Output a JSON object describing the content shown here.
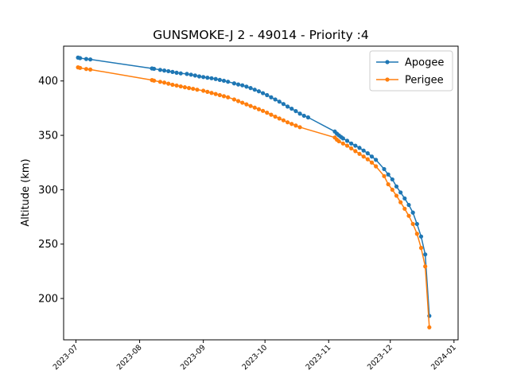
{
  "chart_data": {
    "type": "line",
    "title": "GUNSMOKE-J 2 - 49014 - Priority :4",
    "xlabel": "",
    "ylabel": "Altitude (km)",
    "xlim": [
      "2023-06-25",
      "2024-01-03"
    ],
    "ylim": [
      162,
      432
    ],
    "xticks": [
      "2023-07",
      "2023-08",
      "2023-09",
      "2023-10",
      "2023-11",
      "2023-12",
      "2024-01"
    ],
    "yticks": [
      200,
      250,
      300,
      350,
      400
    ],
    "grid": false,
    "legend_position": "upper right",
    "series": [
      {
        "name": "Apogee",
        "color": "#1f77b4",
        "marker": "dot",
        "points": [
          [
            "2023-07-02",
            421.5
          ],
          [
            "2023-07-03",
            421
          ],
          [
            "2023-07-06",
            420.2
          ],
          [
            "2023-07-08",
            419.8
          ],
          [
            "2023-08-07",
            411.5
          ],
          [
            "2023-08-08",
            411.2
          ],
          [
            "2023-08-11",
            410.2
          ],
          [
            "2023-08-13",
            409.6
          ],
          [
            "2023-08-15",
            409
          ],
          [
            "2023-08-17",
            408.3
          ],
          [
            "2023-08-19",
            407.6
          ],
          [
            "2023-08-21",
            407
          ],
          [
            "2023-08-24",
            406.5
          ],
          [
            "2023-08-26",
            405.8
          ],
          [
            "2023-08-28",
            405
          ],
          [
            "2023-08-30",
            404.2
          ],
          [
            "2023-09-01",
            403.6
          ],
          [
            "2023-09-03",
            403
          ],
          [
            "2023-09-05",
            402.5
          ],
          [
            "2023-09-07",
            401.8
          ],
          [
            "2023-09-09",
            401
          ],
          [
            "2023-09-11",
            400.2
          ],
          [
            "2023-09-13",
            399.3
          ],
          [
            "2023-09-16",
            397.8
          ],
          [
            "2023-09-18",
            396.8
          ],
          [
            "2023-09-20",
            396
          ],
          [
            "2023-09-22",
            394.8
          ],
          [
            "2023-09-24",
            393.5
          ],
          [
            "2023-09-26",
            392
          ],
          [
            "2023-09-28",
            390.5
          ],
          [
            "2023-09-30",
            388.8
          ],
          [
            "2023-10-02",
            387
          ],
          [
            "2023-10-04",
            385
          ],
          [
            "2023-10-06",
            383
          ],
          [
            "2023-10-08",
            381
          ],
          [
            "2023-10-10",
            378.8
          ],
          [
            "2023-10-12",
            376.5
          ],
          [
            "2023-10-14",
            374.5
          ],
          [
            "2023-10-16",
            372.3
          ],
          [
            "2023-10-18",
            370
          ],
          [
            "2023-10-20",
            368
          ],
          [
            "2023-10-22",
            366.5
          ],
          [
            "2023-11-04",
            353.5
          ],
          [
            "2023-11-05",
            351.5
          ],
          [
            "2023-11-06",
            350
          ],
          [
            "2023-11-07",
            348.5
          ],
          [
            "2023-11-08",
            347.2
          ],
          [
            "2023-11-10",
            345
          ],
          [
            "2023-11-12",
            342.5
          ],
          [
            "2023-11-14",
            340.5
          ],
          [
            "2023-11-16",
            338.5
          ],
          [
            "2023-11-18",
            336
          ],
          [
            "2023-11-20",
            333.5
          ],
          [
            "2023-11-22",
            330.5
          ],
          [
            "2023-11-24",
            327.5
          ],
          [
            "2023-11-28",
            319
          ],
          [
            "2023-11-30",
            314
          ],
          [
            "2023-12-02",
            309.5
          ],
          [
            "2023-12-04",
            303
          ],
          [
            "2023-12-06",
            297.5
          ],
          [
            "2023-12-08",
            292
          ],
          [
            "2023-12-10",
            286
          ],
          [
            "2023-12-12",
            279
          ],
          [
            "2023-12-14",
            268.5
          ],
          [
            "2023-12-16",
            257
          ],
          [
            "2023-12-18",
            240.5
          ],
          [
            "2023-12-20",
            184
          ]
        ]
      },
      {
        "name": "Perigee",
        "color": "#ff7f0e",
        "marker": "dot",
        "points": [
          [
            "2023-07-02",
            412.5
          ],
          [
            "2023-07-03",
            412
          ],
          [
            "2023-07-06",
            411
          ],
          [
            "2023-07-08",
            410.5
          ],
          [
            "2023-08-07",
            400.8
          ],
          [
            "2023-08-08",
            400.3
          ],
          [
            "2023-08-11",
            399.2
          ],
          [
            "2023-08-13",
            398.5
          ],
          [
            "2023-08-15",
            397.5
          ],
          [
            "2023-08-17",
            396.5
          ],
          [
            "2023-08-19",
            395.8
          ],
          [
            "2023-08-21",
            395
          ],
          [
            "2023-08-23",
            394.2
          ],
          [
            "2023-08-25",
            393.5
          ],
          [
            "2023-08-27",
            392.8
          ],
          [
            "2023-08-29",
            392
          ],
          [
            "2023-09-01",
            391
          ],
          [
            "2023-09-03",
            390
          ],
          [
            "2023-09-05",
            389
          ],
          [
            "2023-09-07",
            388
          ],
          [
            "2023-09-09",
            387
          ],
          [
            "2023-09-11",
            386
          ],
          [
            "2023-09-13",
            385
          ],
          [
            "2023-09-16",
            383
          ],
          [
            "2023-09-18",
            381.5
          ],
          [
            "2023-09-20",
            380
          ],
          [
            "2023-09-22",
            378.5
          ],
          [
            "2023-09-24",
            377
          ],
          [
            "2023-09-26",
            375.5
          ],
          [
            "2023-09-28",
            374
          ],
          [
            "2023-09-30",
            372.5
          ],
          [
            "2023-10-02",
            370.8
          ],
          [
            "2023-10-04",
            369
          ],
          [
            "2023-10-06",
            367.2
          ],
          [
            "2023-10-08",
            365.5
          ],
          [
            "2023-10-10",
            363.8
          ],
          [
            "2023-10-12",
            362
          ],
          [
            "2023-10-14",
            360.5
          ],
          [
            "2023-10-16",
            359
          ],
          [
            "2023-10-18",
            357.5
          ],
          [
            "2023-11-04",
            348
          ],
          [
            "2023-11-05",
            346
          ],
          [
            "2023-11-06",
            344.5
          ],
          [
            "2023-11-08",
            342.5
          ],
          [
            "2023-11-10",
            340.5
          ],
          [
            "2023-11-12",
            338
          ],
          [
            "2023-11-14",
            335.5
          ],
          [
            "2023-11-16",
            333
          ],
          [
            "2023-11-18",
            330.5
          ],
          [
            "2023-11-20",
            328
          ],
          [
            "2023-11-22",
            325
          ],
          [
            "2023-11-24",
            321.5
          ],
          [
            "2023-11-28",
            312.5
          ],
          [
            "2023-11-30",
            305
          ],
          [
            "2023-12-02",
            300
          ],
          [
            "2023-12-04",
            294.5
          ],
          [
            "2023-12-06",
            288.5
          ],
          [
            "2023-12-08",
            282.5
          ],
          [
            "2023-12-10",
            276
          ],
          [
            "2023-12-12",
            268.5
          ],
          [
            "2023-12-14",
            259.5
          ],
          [
            "2023-12-16",
            246.5
          ],
          [
            "2023-12-18",
            229.5
          ],
          [
            "2023-12-20",
            173.5
          ]
        ]
      }
    ]
  }
}
